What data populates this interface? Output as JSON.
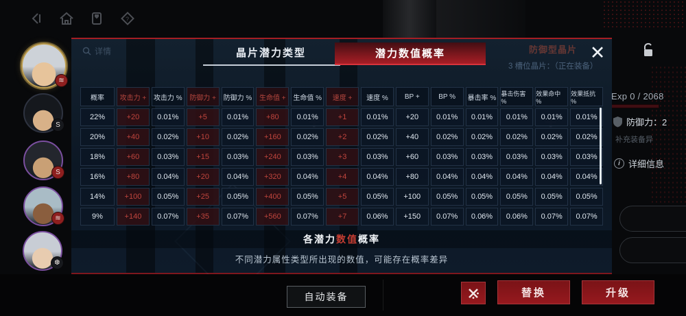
{
  "colors": {
    "accent_red": "#a81e26",
    "cell_accent_text": "#c0453d",
    "modal_bg": "#0c1724",
    "gold_ring": "#bd9d4e",
    "purple_ring": "#8a55c0"
  },
  "top_nav": {
    "icons": [
      "back-icon",
      "home-icon",
      "manual-icon",
      "help-icon"
    ]
  },
  "avatars": [
    {
      "name": "character-1",
      "ring": "#bd9d4e",
      "hair": "#cdd2d8",
      "skin": "#e7c49b",
      "badge_bg": "#8e1f1f",
      "badge_glyph": "≋",
      "selected": true
    },
    {
      "name": "character-2",
      "ring": "#2e3340",
      "hair": "#15181d",
      "skin": "#d8b188",
      "badge_bg": "#17191d",
      "badge_glyph": "S",
      "selected": false
    },
    {
      "name": "character-3",
      "ring": "#7b4fa0",
      "hair": "#23262d",
      "skin": "#c9a075",
      "badge_bg": "#8e1f1f",
      "badge_glyph": "S",
      "selected": false
    },
    {
      "name": "character-4",
      "ring": "#7b4fa0",
      "hair": "#a9bcc6",
      "skin": "#8a5e3e",
      "badge_bg": "#8e1f1f",
      "badge_glyph": "≋",
      "selected": false
    },
    {
      "name": "character-5",
      "ring": "#7b4fa0",
      "hair": "#c8cdd5",
      "skin": "#e8ccb0",
      "badge_bg": "#17191d",
      "badge_glyph": "❆",
      "selected": false
    }
  ],
  "modal": {
    "detail_label": "详情",
    "tabs": [
      {
        "label": "晶片潜力类型",
        "active": false
      },
      {
        "label": "潜力数值概率",
        "active": true
      }
    ],
    "table": {
      "columns": [
        {
          "label": "概率",
          "accent": false
        },
        {
          "label": "攻击力 +",
          "accent": true
        },
        {
          "label": "攻击力 %",
          "accent": false
        },
        {
          "label": "防御力 +",
          "accent": true
        },
        {
          "label": "防御力 %",
          "accent": false
        },
        {
          "label": "生命值 +",
          "accent": true
        },
        {
          "label": "生命值 %",
          "accent": false
        },
        {
          "label": "速度 +",
          "accent": true
        },
        {
          "label": "速度 %",
          "accent": false
        },
        {
          "label": "BP +",
          "accent": false
        },
        {
          "label": "BP %",
          "accent": false
        },
        {
          "label": "暴击率 %",
          "accent": false
        },
        {
          "label": "暴击伤害 %",
          "accent": false
        },
        {
          "label": "效果命中 %",
          "accent": false
        },
        {
          "label": "效果抵抗 %",
          "accent": false
        }
      ],
      "rows": [
        {
          "prob": "22%",
          "values": [
            "+20",
            "0.01%",
            "+5",
            "0.01%",
            "+80",
            "0.01%",
            "+1",
            "0.01%",
            "+20",
            "0.01%",
            "0.01%",
            "0.01%",
            "0.01%",
            "0.01%"
          ]
        },
        {
          "prob": "20%",
          "values": [
            "+40",
            "0.02%",
            "+10",
            "0.02%",
            "+160",
            "0.02%",
            "+2",
            "0.02%",
            "+40",
            "0.02%",
            "0.02%",
            "0.02%",
            "0.02%",
            "0.02%"
          ]
        },
        {
          "prob": "18%",
          "values": [
            "+60",
            "0.03%",
            "+15",
            "0.03%",
            "+240",
            "0.03%",
            "+3",
            "0.03%",
            "+60",
            "0.03%",
            "0.03%",
            "0.03%",
            "0.03%",
            "0.03%"
          ]
        },
        {
          "prob": "16%",
          "values": [
            "+80",
            "0.04%",
            "+20",
            "0.04%",
            "+320",
            "0.04%",
            "+4",
            "0.04%",
            "+80",
            "0.04%",
            "0.04%",
            "0.04%",
            "0.04%",
            "0.04%"
          ]
        },
        {
          "prob": "14%",
          "values": [
            "+100",
            "0.05%",
            "+25",
            "0.05%",
            "+400",
            "0.05%",
            "+5",
            "0.05%",
            "+100",
            "0.05%",
            "0.05%",
            "0.05%",
            "0.05%",
            "0.05%"
          ]
        },
        {
          "prob": "9%",
          "values": [
            "+140",
            "0.07%",
            "+35",
            "0.07%",
            "+560",
            "0.07%",
            "+7",
            "0.06%",
            "+150",
            "0.07%",
            "0.06%",
            "0.06%",
            "0.07%",
            "0.07%"
          ]
        }
      ]
    },
    "footer": {
      "title_left": "各潜力",
      "title_red": "数值",
      "title_right": "概率",
      "description": "不同潜力属性类型所出现的数值，可能存在概率差异"
    },
    "close_glyph": "✕"
  },
  "right_panel": {
    "title": "防御型晶片",
    "subtitle": "3 槽位晶片：（正在装备）",
    "exp_label": "Exp 0 / 2068",
    "defense_label": "防御力：2",
    "partial_text": "，补充装备异",
    "detail_info_label": "详细信息"
  },
  "bottom_bar": {
    "auto_equip_label": "自动装备",
    "replace_label": "替换",
    "upgrade_label": "升级"
  }
}
